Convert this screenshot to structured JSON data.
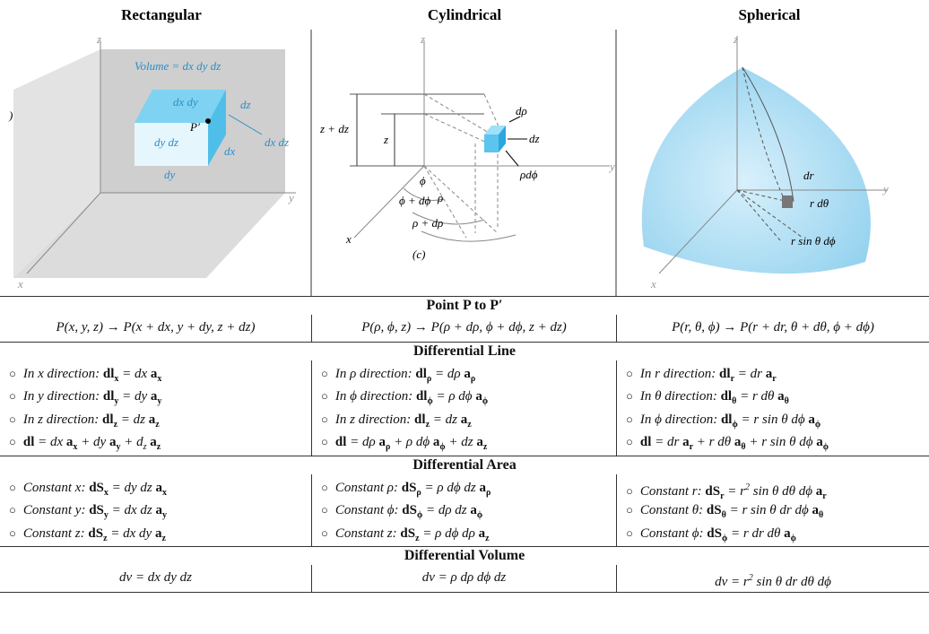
{
  "titles": [
    "Rectangular",
    "Cylindrical",
    "Spherical"
  ],
  "figures": [
    {
      "labels": [
        "z",
        "Volume = dx dy dz",
        "dx dy",
        "dz",
        "P′",
        "dy dz",
        "dx",
        "dx dz",
        "dy",
        "y",
        "x",
        ")"
      ]
    },
    {
      "labels": [
        "z",
        "dρ",
        "dz",
        "z + dz",
        "z",
        "y",
        "ϕ",
        "ρ",
        "ϕ + dϕ",
        "ρdϕ",
        "ρ + dρ",
        "x",
        "(c)"
      ]
    },
    {
      "labels": [
        "z",
        "dr",
        "r dθ",
        "r sin θ dϕ",
        "y",
        "x"
      ]
    }
  ],
  "sections": [
    {
      "title": "Point P to P′",
      "bullets": false,
      "columns": [
        [
          [
            "P(x, y, z) → P(x + dx, y + dy, z + dz)"
          ]
        ],
        [
          [
            "P(ρ, ϕ, z) → P(ρ + dρ, ϕ + dϕ, z + dz)"
          ]
        ],
        [
          [
            "P(r, θ, ϕ) → P(r + dr, θ + dθ, ϕ + dϕ)"
          ]
        ]
      ]
    },
    {
      "title": "Differential Line",
      "bullets": true,
      "columns": [
        [
          [
            "In x direction: ",
            {
              "b": "dl",
              "sub": "x"
            },
            " = dx ",
            {
              "b": "a",
              "sub": "x"
            }
          ],
          [
            "In y direction: ",
            {
              "b": "dl",
              "sub": "y"
            },
            " = dy ",
            {
              "b": "a",
              "sub": "y"
            }
          ],
          [
            "In z direction: ",
            {
              "b": "dl",
              "sub": "z"
            },
            " = dz ",
            {
              "b": "a",
              "sub": "z"
            }
          ],
          [
            {
              "b": "dl"
            },
            " = dx ",
            {
              "b": "a",
              "sub": "x"
            },
            " + dy ",
            {
              "b": "a",
              "sub": "y"
            },
            " + ",
            {
              "t": "d",
              "sub": "z"
            },
            " ",
            {
              "b": "a",
              "sub": "z"
            }
          ]
        ],
        [
          [
            "In ρ direction: ",
            {
              "b": "dl",
              "sub": "ρ"
            },
            " = dρ ",
            {
              "b": "a",
              "sub": "ρ"
            }
          ],
          [
            "In ϕ direction: ",
            {
              "b": "dl",
              "sub": "ϕ"
            },
            " = ρ dϕ ",
            {
              "b": "a",
              "sub": "ϕ"
            }
          ],
          [
            "In z direction: ",
            {
              "b": "dl",
              "sub": "z"
            },
            " = dz ",
            {
              "b": "a",
              "sub": "z"
            }
          ],
          [
            {
              "b": "dl"
            },
            " = dρ ",
            {
              "b": "a",
              "sub": "ρ"
            },
            " + ρ dϕ ",
            {
              "b": "a",
              "sub": "ϕ"
            },
            " + dz ",
            {
              "b": "a",
              "sub": "z"
            }
          ]
        ],
        [
          [
            "In r direction: ",
            {
              "b": "dl",
              "sub": "r"
            },
            " = dr ",
            {
              "b": "a",
              "sub": "r"
            }
          ],
          [
            "In θ direction: ",
            {
              "b": "dl",
              "sub": "θ"
            },
            " = r dθ ",
            {
              "b": "a",
              "sub": "θ"
            }
          ],
          [
            "In ϕ direction: ",
            {
              "b": "dl",
              "sub": "ϕ"
            },
            " = r sin θ dϕ ",
            {
              "b": "a",
              "sub": "ϕ"
            }
          ],
          [
            {
              "b": "dl"
            },
            " = dr ",
            {
              "b": "a",
              "sub": "r"
            },
            " + r dθ ",
            {
              "b": "a",
              "sub": "θ"
            },
            " + r sin θ dϕ ",
            {
              "b": "a",
              "sub": "ϕ"
            }
          ]
        ]
      ]
    },
    {
      "title": "Differential Area",
      "bullets": true,
      "columns": [
        [
          [
            "Constant x: ",
            {
              "b": "dS",
              "sub": "x"
            },
            " = dy dz ",
            {
              "b": "a",
              "sub": "x"
            }
          ],
          [
            "Constant y: ",
            {
              "b": "dS",
              "sub": "y"
            },
            " = dx dz ",
            {
              "b": "a",
              "sub": "y"
            }
          ],
          [
            "Constant z: ",
            {
              "b": "dS",
              "sub": "z"
            },
            " = dx dy ",
            {
              "b": "a",
              "sub": "z"
            }
          ]
        ],
        [
          [
            "Constant ρ: ",
            {
              "b": "dS",
              "sub": "ρ"
            },
            " = ρ dϕ dz ",
            {
              "b": "a",
              "sub": "ρ"
            }
          ],
          [
            "Constant ϕ: ",
            {
              "b": "dS",
              "sub": "ϕ"
            },
            " = dρ dz ",
            {
              "b": "a",
              "sub": "ϕ"
            }
          ],
          [
            "Constant z: ",
            {
              "b": "dS",
              "sub": "z"
            },
            " = ρ dϕ dρ ",
            {
              "b": "a",
              "sub": "z"
            }
          ]
        ],
        [
          [
            "Constant r: ",
            {
              "b": "dS",
              "sub": "r"
            },
            " = ",
            {
              "t": "r",
              "sup": "2"
            },
            " sin θ dθ dϕ ",
            {
              "b": "a",
              "sub": "r"
            }
          ],
          [
            "Constant θ: ",
            {
              "b": "dS",
              "sub": "θ"
            },
            " = r sin θ dr dϕ ",
            {
              "b": "a",
              "sub": "θ"
            }
          ],
          [
            "Constant ϕ: ",
            {
              "b": "dS",
              "sub": "ϕ"
            },
            " = r dr dθ ",
            {
              "b": "a",
              "sub": "ϕ"
            }
          ]
        ]
      ]
    },
    {
      "title": "Differential Volume",
      "bullets": false,
      "columns": [
        [
          [
            "dv = dx dy dz"
          ]
        ],
        [
          [
            "dv = ρ dρ dϕ dz"
          ]
        ],
        [
          [
            "dv = ",
            {
              "t": "r",
              "sup": "2"
            },
            " sin θ  dr dθ dϕ"
          ]
        ]
      ]
    }
  ]
}
